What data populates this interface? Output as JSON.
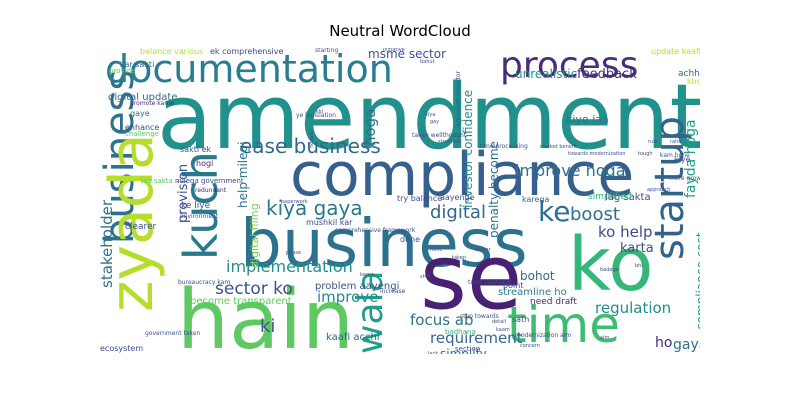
{
  "title": "Neutral WordCloud",
  "words": [
    {
      "text": "amendment",
      "color": "#21918c"
    },
    {
      "text": "business",
      "color": "#2c728e"
    },
    {
      "text": "compliance",
      "color": "#355f8d"
    },
    {
      "text": "hain",
      "color": "#5ec962"
    },
    {
      "text": "se",
      "color": "#482173"
    },
    {
      "text": "ko",
      "color": "#35b779"
    },
    {
      "text": "zyada",
      "color": "#b5de2b"
    },
    {
      "text": "kuch",
      "color": "#2a788e"
    },
    {
      "text": "time",
      "color": "#3fbc73"
    },
    {
      "text": "documentation",
      "color": "#287d8e"
    },
    {
      "text": "process",
      "color": "#472d7b"
    },
    {
      "text": "startup",
      "color": "#33638d"
    },
    {
      "text": "wala",
      "color": "#1f9e89"
    },
    {
      "text": "ke",
      "color": "#2d708e"
    },
    {
      "text": "ease business",
      "color": "#31688e"
    },
    {
      "text": "kiya gaya",
      "color": "#2a788e"
    },
    {
      "text": "implementation",
      "color": "#228d8d"
    },
    {
      "text": "stakeholder",
      "color": "#2c728e"
    },
    {
      "text": "sector ko",
      "color": "#3b528b"
    },
    {
      "text": "digital",
      "color": "#31688e"
    },
    {
      "text": "boost",
      "color": "#2c728e"
    },
    {
      "text": "ko help",
      "color": "#3e4a89"
    },
    {
      "text": "karta",
      "color": "#3b528b"
    },
    {
      "text": "improve hoga",
      "color": "#2c728e"
    },
    {
      "text": "regulation",
      "color": "#228d8d"
    },
    {
      "text": "requirement",
      "color": "#31688e"
    },
    {
      "text": "focus ab",
      "color": "#2c728e"
    },
    {
      "text": "improve",
      "color": "#228d8d"
    },
    {
      "text": "ki",
      "color": "#3b528b"
    },
    {
      "text": "gaya",
      "color": "#2c728e"
    },
    {
      "text": "ho",
      "color": "#482878"
    },
    {
      "text": "provision",
      "color": "#3b528b"
    },
    {
      "text": "hoga",
      "color": "#2c728e"
    },
    {
      "text": "fayda hoga",
      "color": "#1f9e89"
    },
    {
      "text": "compliance cost",
      "color": "#20a386"
    },
    {
      "text": "feedback",
      "color": "#472d7b"
    },
    {
      "text": "unrealistic",
      "color": "#21918c"
    },
    {
      "text": "msme sector",
      "color": "#3b528b"
    },
    {
      "text": "help milegi",
      "color": "#2c728e"
    },
    {
      "text": "penalty become",
      "color": "#2c728e"
    },
    {
      "text": "investor confidence",
      "color": "#228d8d"
    },
    {
      "text": "digital filing",
      "color": "#7ad151"
    },
    {
      "text": "simplify",
      "color": "#2c728e"
    },
    {
      "text": "bohot",
      "color": "#31688e"
    },
    {
      "text": "problem aayengi",
      "color": "#3b528b"
    },
    {
      "text": "become transparent",
      "color": "#5ec962"
    },
    {
      "text": "kaafi acchi",
      "color": "#31688e"
    },
    {
      "text": "streamline ho",
      "color": "#287d8e"
    },
    {
      "text": "need draft",
      "color": "#482878"
    },
    {
      "text": "lag sakta",
      "color": "#3e4a89"
    },
    {
      "text": "simplified",
      "color": "#35b779"
    },
    {
      "text": "kiye jaa",
      "color": "#2c728e"
    },
    {
      "text": "digital update",
      "color": "#31688e"
    },
    {
      "text": "balance various",
      "color": "#b5de2b"
    },
    {
      "text": "ek comprehensive",
      "color": "#3e4a89"
    },
    {
      "text": "update kaafi",
      "color": "#b5de2b"
    },
    {
      "text": "achha",
      "color": "#31688e"
    },
    {
      "text": "enhance",
      "color": "#3e4a89"
    },
    {
      "text": "sakti ek",
      "color": "#3b528b"
    },
    {
      "text": "hogi",
      "color": "#482878"
    },
    {
      "text": "kiye",
      "color": "#3b528b"
    },
    {
      "text": "try balance",
      "color": "#3e4a89"
    },
    {
      "text": "aayenge",
      "color": "#3b528b"
    },
    {
      "text": "kar sakti",
      "color": "#31688e"
    },
    {
      "text": "provide",
      "color": "#5ec962"
    },
    {
      "text": "promote karne",
      "color": "#472d7b"
    },
    {
      "text": "gaye",
      "color": "#2c728e"
    },
    {
      "text": "ke liye",
      "color": "#3b528b"
    },
    {
      "text": "clearer",
      "color": "#3b528b"
    },
    {
      "text": "ecosystem",
      "color": "#3e4a89"
    },
    {
      "text": "mushkil kar",
      "color": "#3e4a89"
    },
    {
      "text": "dene",
      "color": "#3b528b"
    },
    {
      "text": "karega",
      "color": "#31688e"
    },
    {
      "text": "point",
      "color": "#3b528b"
    },
    {
      "text": "sath",
      "color": "#3b528b"
    },
    {
      "text": "section",
      "color": "#3b528b"
    },
    {
      "text": "badhana",
      "color": "#35b779"
    },
    {
      "text": "jaa sakta",
      "color": "#5ec962"
    },
    {
      "text": "challenge",
      "color": "#5ec962"
    },
    {
      "text": "milega government",
      "color": "#3e4a89"
    },
    {
      "text": "comprehensive framework",
      "color": "#3b528b"
    },
    {
      "text": "bureaucracy kam",
      "color": "#3b528b"
    },
    {
      "text": "government taken",
      "color": "#3b528b"
    },
    {
      "text": "step towards",
      "color": "#3b528b"
    },
    {
      "text": "modernization aim",
      "color": "#3b528b"
    },
    {
      "text": "trust badhane",
      "color": "#3b528b"
    },
    {
      "text": "ye legislation",
      "color": "#3b528b"
    },
    {
      "text": "taken wellthought",
      "color": "#3e4a89"
    },
    {
      "text": "environment",
      "color": "#3b528b"
    },
    {
      "text": "redundant",
      "color": "#482878"
    },
    {
      "text": "kam hone",
      "color": "#3b528b"
    },
    {
      "text": "mere growth",
      "color": "#3b528b"
    },
    {
      "text": "increase",
      "color": "#3b528b"
    },
    {
      "text": "starting",
      "color": "#3b528b"
    },
    {
      "text": "paperwork",
      "color": "#3b528b"
    },
    {
      "text": "time processing",
      "color": "#3b528b"
    },
    {
      "text": "market benefit",
      "color": "#3b528b"
    },
    {
      "text": "towards modernization",
      "color": "#3b528b"
    },
    {
      "text": "legislation investor",
      "color": "#3b528b"
    },
    {
      "text": "approach",
      "color": "#3b528b"
    },
    {
      "text": "structure",
      "color": "#3b528b"
    },
    {
      "text": "badega",
      "color": "#3b528b"
    },
    {
      "text": "raha",
      "color": "#3b528b"
    },
    {
      "text": "rule",
      "color": "#3b528b"
    },
    {
      "text": "khoda",
      "color": "#b5de2b"
    },
    {
      "text": "bahut",
      "color": "#3b528b"
    },
    {
      "text": "hopeful",
      "color": "#3b528b"
    },
    {
      "text": "initiative",
      "color": "#3b528b"
    },
    {
      "text": "shift",
      "color": "#3b528b"
    },
    {
      "text": "sector",
      "color": "#3b528b"
    },
    {
      "text": "karne",
      "color": "#3b528b"
    },
    {
      "text": "phase",
      "color": "#3b528b"
    },
    {
      "text": "aim",
      "color": "#3b528b"
    },
    {
      "text": "lack",
      "color": "#3b528b"
    },
    {
      "text": "detail",
      "color": "#3b528b"
    },
    {
      "text": "concern",
      "color": "#3b528b"
    },
    {
      "text": "kaam",
      "color": "#3b528b"
    },
    {
      "text": "tough",
      "color": "#3b528b"
    },
    {
      "text": "bhi",
      "color": "#3b528b"
    },
    {
      "text": "kiya",
      "color": "#3b528b"
    },
    {
      "text": "hone",
      "color": "#3b528b"
    },
    {
      "text": "taken",
      "color": "#3b528b"
    },
    {
      "text": "kki",
      "color": "#3b528b"
    },
    {
      "text": "gay",
      "color": "#3b528b"
    }
  ]
}
